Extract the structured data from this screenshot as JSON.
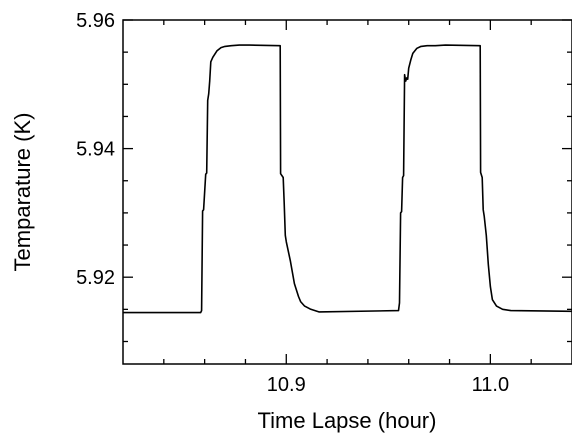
{
  "chart_data": {
    "type": "line",
    "title": "",
    "xlabel": "Time Lapse (hour)",
    "ylabel": "Temparature (K)",
    "xlim": [
      10.82,
      11.04
    ],
    "ylim": [
      5.9065,
      5.96
    ],
    "xticks": [
      {
        "value": 10.9,
        "label": "10.9"
      },
      {
        "value": 11.0,
        "label": "11.0"
      }
    ],
    "yticks": [
      {
        "value": 5.92,
        "label": "5.92"
      },
      {
        "value": 5.94,
        "label": "5.94"
      },
      {
        "value": 5.96,
        "label": "5.96"
      }
    ],
    "grid": false,
    "legend": "none",
    "line_color": "#000000",
    "series": [
      {
        "name": "",
        "x": [
          10.82,
          10.858,
          10.8585,
          10.859,
          10.8595,
          10.8605,
          10.861,
          10.8615,
          10.862,
          10.8625,
          10.863,
          10.864,
          10.866,
          10.868,
          10.87,
          10.873,
          10.877,
          10.882,
          10.897,
          10.8972,
          10.8985,
          10.899,
          10.8995,
          10.9,
          10.902,
          10.904,
          10.906,
          10.907,
          10.909,
          10.912,
          10.916,
          10.955,
          10.9555,
          10.956,
          10.9565,
          10.957,
          10.9575,
          10.958,
          10.9585,
          10.959,
          10.9595,
          10.96,
          10.961,
          10.962,
          10.964,
          10.966,
          10.969,
          10.973,
          10.978,
          10.995,
          10.9952,
          10.996,
          10.9965,
          10.997,
          10.998,
          10.999,
          11.0,
          11.001,
          11.003,
          11.006,
          11.01,
          11.04
        ],
        "y": [
          5.9145,
          5.9145,
          5.9148,
          5.9303,
          5.9305,
          5.936,
          5.9362,
          5.9475,
          5.9485,
          5.9505,
          5.9535,
          5.9542,
          5.9552,
          5.9557,
          5.9559,
          5.956,
          5.9561,
          5.9561,
          5.956,
          5.9361,
          5.9355,
          5.9315,
          5.9265,
          5.9255,
          5.9225,
          5.919,
          5.917,
          5.9162,
          5.9155,
          5.915,
          5.9146,
          5.9148,
          5.916,
          5.93,
          5.9302,
          5.9355,
          5.9358,
          5.9515,
          5.9505,
          5.951,
          5.9508,
          5.9525,
          5.9538,
          5.9548,
          5.9556,
          5.9559,
          5.956,
          5.956,
          5.9561,
          5.956,
          5.9363,
          5.9355,
          5.9305,
          5.9295,
          5.9265,
          5.922,
          5.9185,
          5.9165,
          5.9155,
          5.915,
          5.9148,
          5.9147
        ]
      }
    ]
  }
}
